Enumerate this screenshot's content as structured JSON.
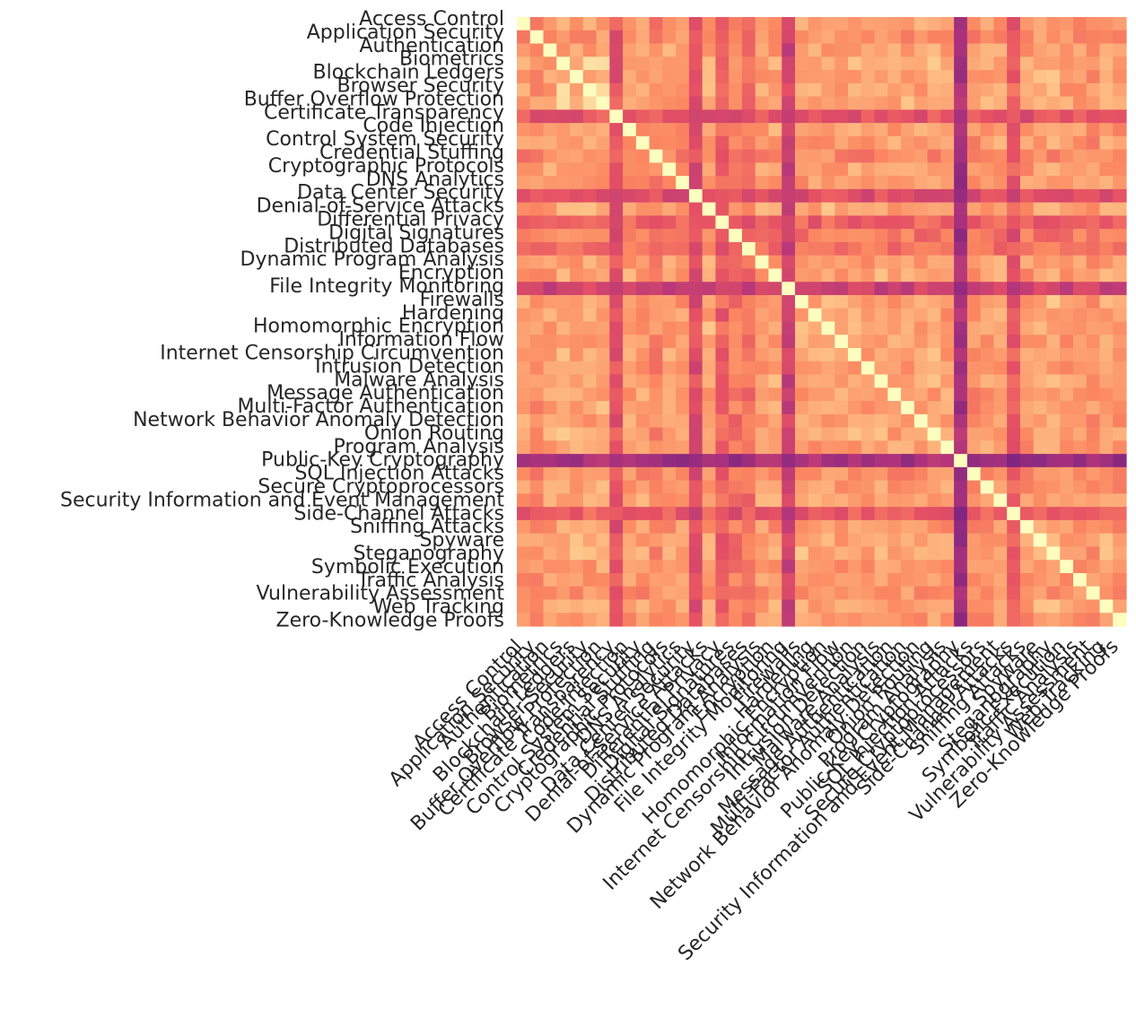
{
  "chart_data": {
    "type": "heatmap",
    "title": "",
    "xlabel": "",
    "ylabel": "",
    "colormap": "magma",
    "value_range": [
      0,
      1
    ],
    "legend": "none",
    "grid": false,
    "labels": [
      "Access Control",
      "Application Security",
      "Authentication",
      "Biometrics",
      "Blockchain Ledgers",
      "Browser Security",
      "Buffer Overflow Protection",
      "Certificate Transparency",
      "Code Injection",
      "Control System Security",
      "Credential Stuffing",
      "Cryptographic Protocols",
      "DNS Analytics",
      "Data Center Security",
      "Denial-of-Service Attacks",
      "Differential Privacy",
      "Digital Signatures",
      "Distributed Databases",
      "Dynamic Program Analysis",
      "Encryption",
      "File Integrity Monitoring",
      "Firewalls",
      "Hardening",
      "Homomorphic Encryption",
      "Information Flow",
      "Internet Censorship Circumvention",
      "Intrusion Detection",
      "Malware Analysis",
      "Message Authentication",
      "Multi-Factor Authentication",
      "Network Behavior Anomaly Detection",
      "Onion Routing",
      "Program Analysis",
      "Public-Key Cryptography",
      "SQL Injection Attacks",
      "Secure Cryptoprocessors",
      "Security Information and Event Management",
      "Side-Channel Attacks",
      "Sniffing Attacks",
      "Spyware",
      "Steganography",
      "Symbolic Execution",
      "Traffic Analysis",
      "Vulnerability Assessment",
      "Web Tracking",
      "Zero-Knowledge Proofs"
    ],
    "note_values": "approximate similarity values read from colour; diagonal = 1",
    "row_base": [
      0.62,
      0.58,
      0.62,
      0.74,
      0.66,
      0.72,
      0.72,
      0.42,
      0.64,
      0.62,
      0.56,
      0.62,
      0.6,
      0.4,
      0.68,
      0.46,
      0.52,
      0.5,
      0.62,
      0.64,
      0.34,
      0.66,
      0.62,
      0.66,
      0.62,
      0.64,
      0.62,
      0.64,
      0.62,
      0.64,
      0.62,
      0.68,
      0.62,
      0.22,
      0.58,
      0.62,
      0.64,
      0.44,
      0.6,
      0.64,
      0.66,
      0.6,
      0.6,
      0.58,
      0.66,
      0.6
    ]
  }
}
